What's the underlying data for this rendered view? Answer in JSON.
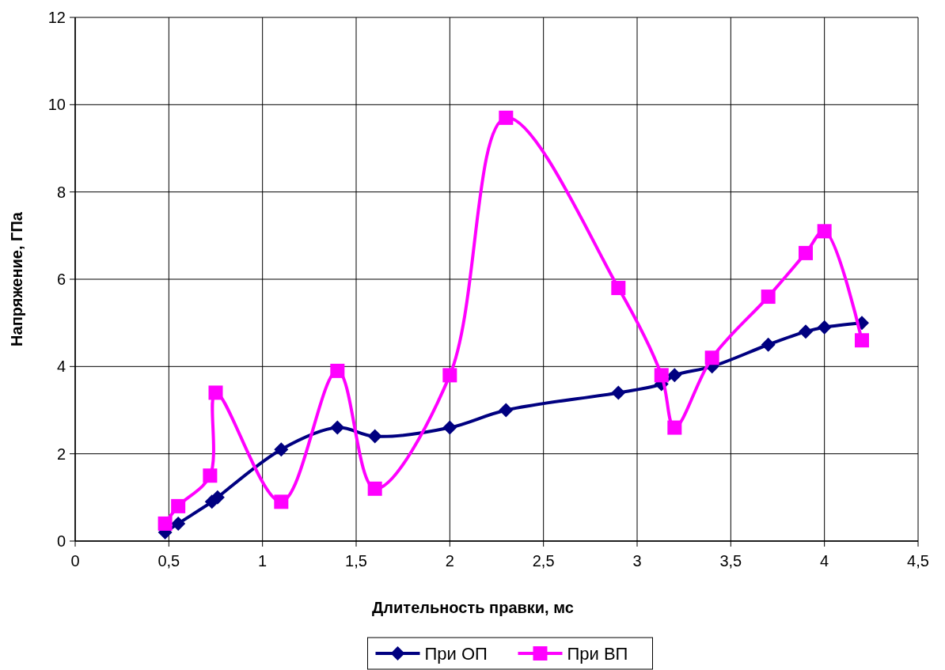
{
  "chart_data": {
    "type": "line",
    "xlabel": "Длительность правки, мс",
    "ylabel": "Напряжение, ГПа",
    "xlim": [
      0,
      4.5
    ],
    "xticks": [
      0,
      {
        "value": 0.5,
        "label": "0,5"
      },
      1,
      {
        "value": 1.5,
        "label": "1,5"
      },
      2,
      {
        "value": 2.5,
        "label": "2,5"
      },
      3,
      {
        "value": 3.5,
        "label": "3,5"
      },
      4,
      {
        "value": 4.5,
        "label": "4,5"
      }
    ],
    "ylim": [
      0,
      12
    ],
    "yticks": [
      0,
      2,
      4,
      6,
      8,
      10,
      12
    ],
    "grid": true,
    "legend": "bottom",
    "line_style": "solid",
    "series": [
      {
        "name": "При ОП",
        "color": "#000080",
        "marker": "diamond",
        "x": [
          0.48,
          0.55,
          0.73,
          0.76,
          1.1,
          1.4,
          1.6,
          2.0,
          2.3,
          2.9,
          3.13,
          3.2,
          3.4,
          3.7,
          3.9,
          4.0,
          4.2
        ],
        "values": [
          0.2,
          0.4,
          0.9,
          1.0,
          2.1,
          2.6,
          2.4,
          2.6,
          3.0,
          3.4,
          3.6,
          3.8,
          4.0,
          4.5,
          4.8,
          4.9,
          5.0
        ]
      },
      {
        "name": "При ВП",
        "color": "#ff00ff",
        "marker": "square",
        "x": [
          0.48,
          0.55,
          0.72,
          0.75,
          1.1,
          1.4,
          1.6,
          2.0,
          2.3,
          2.9,
          3.13,
          3.2,
          3.4,
          3.7,
          3.9,
          4.0,
          4.2
        ],
        "values": [
          0.4,
          0.8,
          1.5,
          3.4,
          0.9,
          3.9,
          1.2,
          3.8,
          9.7,
          5.8,
          3.8,
          2.6,
          4.2,
          5.6,
          6.6,
          7.1,
          4.6
        ]
      }
    ]
  }
}
